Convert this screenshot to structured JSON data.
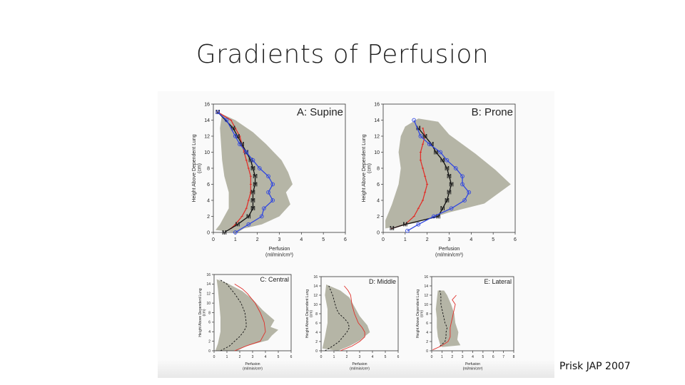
{
  "slide": {
    "title": "Gradients of Perfusion",
    "citation": "Prisk JAP 2007"
  },
  "colors": {
    "band": "#b5b5a6",
    "red": "#e0302a",
    "blue": "#2f46e0",
    "black": "#111111"
  },
  "chart_data": [
    {
      "type": "line",
      "title": "A: Supine",
      "xlabel": "Perfusion",
      "xunit": "(ml/min/cm³)",
      "ylabel": "Height Above Dependent Lung",
      "yunit": "(cm)",
      "xlim": [
        0,
        6
      ],
      "ylim": [
        0,
        16
      ],
      "xticks": [
        0,
        1,
        2,
        3,
        4,
        5,
        6
      ],
      "yticks": [
        0,
        2,
        4,
        6,
        8,
        10,
        12,
        14,
        16
      ],
      "band": [
        [
          1.1,
          0
        ],
        [
          1.4,
          0.5
        ],
        [
          2.2,
          1
        ],
        [
          3.0,
          2
        ],
        [
          3.5,
          3.5
        ],
        [
          3.3,
          5
        ],
        [
          3.6,
          6
        ],
        [
          3.4,
          7.5
        ],
        [
          3.1,
          9
        ],
        [
          2.4,
          11
        ],
        [
          1.8,
          12.5
        ],
        [
          1.0,
          14
        ],
        [
          0.2,
          15
        ],
        [
          0.4,
          14.8
        ],
        [
          0.3,
          13
        ],
        [
          0.35,
          11
        ],
        [
          0.4,
          9
        ],
        [
          0.5,
          7
        ],
        [
          0.7,
          5
        ],
        [
          0.7,
          3
        ],
        [
          0.5,
          2
        ],
        [
          0.3,
          1
        ],
        [
          0.1,
          0.3
        ]
      ],
      "series": [
        {
          "color": "#e0302a",
          "marker": "tick",
          "x": [
            0.8,
            1.0,
            1.3,
            1.5,
            1.6,
            1.7,
            1.7,
            1.7,
            1.6,
            1.5,
            1.4,
            1.3,
            1.2,
            1.0,
            0.8,
            0.2
          ],
          "y": [
            0.5,
            1,
            2,
            3,
            4,
            5,
            6,
            7,
            8,
            9,
            10,
            11,
            12,
            13,
            14,
            15
          ]
        },
        {
          "color": "#111111",
          "marker": "M",
          "x": [
            0.5,
            1.1,
            1.6,
            1.8,
            1.8,
            1.8,
            1.9,
            1.9,
            1.8,
            1.7,
            1.5,
            1.3,
            1.1,
            0.9,
            0.2
          ],
          "y": [
            0,
            1,
            2,
            3,
            4,
            5,
            6,
            7,
            8,
            9,
            10,
            11,
            12,
            13,
            15
          ]
        },
        {
          "color": "#2f46e0",
          "marker": "circle",
          "x": [
            1.0,
            1.6,
            2.2,
            2.3,
            2.7,
            2.5,
            2.7,
            2.5,
            2.1,
            1.8,
            1.5,
            1.2,
            1.0,
            0.6,
            0.2
          ],
          "y": [
            0,
            1,
            2,
            3,
            4,
            5,
            6,
            7,
            8,
            9,
            10,
            11,
            12,
            14,
            15
          ]
        }
      ]
    },
    {
      "type": "line",
      "title": "B: Prone",
      "xlabel": "Perfusion",
      "xunit": "(ml/min/cm³)",
      "ylabel": "Height Above Dependent Lung",
      "yunit": "(cm)",
      "xlim": [
        0,
        6
      ],
      "ylim": [
        0,
        16
      ],
      "xticks": [
        0,
        1,
        2,
        3,
        4,
        5,
        6
      ],
      "yticks": [
        0,
        2,
        4,
        6,
        8,
        10,
        12,
        14,
        16
      ],
      "band": [
        [
          0.1,
          0.5
        ],
        [
          1.5,
          1.2
        ],
        [
          3.0,
          2.5
        ],
        [
          4.6,
          3.6
        ],
        [
          5.8,
          6
        ],
        [
          5.1,
          7.8
        ],
        [
          4.2,
          9.8
        ],
        [
          3.0,
          12.2
        ],
        [
          2.5,
          13.8
        ],
        [
          1.6,
          14.2
        ],
        [
          1.0,
          13.2
        ],
        [
          0.8,
          12
        ],
        [
          0.7,
          10
        ],
        [
          0.8,
          8
        ],
        [
          0.7,
          6
        ],
        [
          0.4,
          3.5
        ],
        [
          0.1,
          1.5
        ]
      ],
      "series": [
        {
          "color": "#e0302a",
          "marker": "tick",
          "x": [
            0.4,
            1.0,
            1.4,
            1.6,
            1.8,
            1.9,
            2.0,
            1.9,
            1.8,
            1.7,
            1.7,
            1.8,
            1.9,
            1.8
          ],
          "y": [
            0.5,
            1,
            2,
            3,
            4,
            5,
            6,
            7,
            8,
            9,
            10,
            11,
            12,
            13
          ]
        },
        {
          "color": "#111111",
          "marker": "M",
          "x": [
            0.4,
            1.0,
            2.5,
            2.7,
            2.9,
            3.0,
            3.1,
            3.0,
            2.9,
            2.7,
            2.4,
            2.2,
            1.9,
            1.6
          ],
          "y": [
            0.5,
            1,
            2,
            3,
            4,
            5,
            6,
            7,
            8,
            9,
            10,
            11,
            12,
            13
          ]
        },
        {
          "color": "#2f46e0",
          "marker": "circle",
          "x": [
            1.1,
            1.6,
            2.3,
            3.1,
            3.7,
            3.9,
            3.6,
            3.6,
            3.3,
            2.9,
            2.6,
            2.1,
            1.7,
            1.4
          ],
          "y": [
            0.2,
            1,
            2,
            3,
            4,
            5,
            6,
            7,
            8,
            9,
            10,
            11,
            12,
            14
          ]
        }
      ]
    },
    {
      "type": "line",
      "title": "C: Central",
      "xlabel": "Perfusion",
      "xunit": "(ml/min/cm³)",
      "ylabel": "Height Above Dependent Lung",
      "yunit": "(cm)",
      "xlim": [
        0,
        6
      ],
      "ylim": [
        0,
        16
      ],
      "xticks": [
        0,
        1,
        2,
        3,
        4,
        5,
        6
      ],
      "yticks": [
        0,
        2,
        4,
        6,
        8,
        10,
        12,
        14,
        16
      ],
      "band": [
        [
          1.8,
          0
        ],
        [
          2.5,
          1
        ],
        [
          4.2,
          2.2
        ],
        [
          4.5,
          3.2
        ],
        [
          5.0,
          4.4
        ],
        [
          4.4,
          5
        ],
        [
          4.7,
          6.4
        ],
        [
          3.8,
          8.5
        ],
        [
          3.0,
          10.8
        ],
        [
          2.2,
          12.5
        ],
        [
          1.0,
          14.2
        ],
        [
          0.2,
          15
        ],
        [
          0.3,
          13
        ],
        [
          0.4,
          10
        ],
        [
          0.5,
          7
        ],
        [
          0.5,
          4
        ],
        [
          0.3,
          1.5
        ],
        [
          0.1,
          0
        ]
      ],
      "series": [
        {
          "color": "#111111",
          "dash": true,
          "x": [
            0.5,
            1.2,
            1.6,
            2.0,
            2.3,
            2.5,
            2.5,
            2.4,
            2.1,
            1.6,
            1.0,
            0.4
          ],
          "y": [
            0,
            1,
            2,
            3,
            4,
            5,
            6,
            8,
            10,
            12,
            14,
            15
          ]
        },
        {
          "color": "#e0302a",
          "dash": false,
          "x": [
            1.6,
            2.5,
            3.6,
            4.0,
            3.9,
            3.6,
            3.2,
            2.6,
            2.2,
            1.6
          ],
          "y": [
            0,
            1,
            2,
            4,
            6,
            8,
            10,
            12,
            13,
            14
          ]
        }
      ]
    },
    {
      "type": "line",
      "title": "D: Middle",
      "xlabel": "Perfusion",
      "xunit": "(ml/min/cm³)",
      "ylabel": "Height Above Dependent Lung",
      "yunit": "(cm)",
      "xlim": [
        0,
        6
      ],
      "ylim": [
        0,
        16
      ],
      "xticks": [
        0,
        1,
        2,
        3,
        4,
        5,
        6
      ],
      "yticks": [
        0,
        2,
        4,
        6,
        8,
        10,
        12,
        14,
        16
      ],
      "band": [
        [
          1.3,
          0
        ],
        [
          2.2,
          1
        ],
        [
          3.0,
          2.2
        ],
        [
          3.8,
          4
        ],
        [
          3.6,
          5.5
        ],
        [
          3.0,
          7.5
        ],
        [
          2.6,
          9.5
        ],
        [
          2.2,
          11.5
        ],
        [
          1.5,
          13
        ],
        [
          0.4,
          14.3
        ],
        [
          0.3,
          12
        ],
        [
          0.5,
          9
        ],
        [
          0.5,
          6
        ],
        [
          0.3,
          3
        ],
        [
          0.1,
          0.5
        ]
      ],
      "series": [
        {
          "color": "#111111",
          "dash": true,
          "x": [
            0.3,
            0.9,
            1.4,
            1.7,
            2.0,
            2.2,
            2.1,
            1.8,
            1.4,
            1.2,
            1.1,
            0.9,
            0.6
          ],
          "y": [
            0,
            1,
            2,
            3,
            4,
            5,
            6,
            7,
            8,
            9,
            10,
            12,
            14
          ]
        },
        {
          "color": "#e0302a",
          "dash": false,
          "x": [
            1.5,
            2.4,
            3.0,
            3.4,
            3.4,
            3.2,
            2.9,
            2.6,
            2.4,
            2.3,
            2.1,
            1.8
          ],
          "y": [
            0,
            1,
            2,
            3,
            4,
            5,
            6,
            8,
            10,
            12,
            13,
            14
          ]
        }
      ]
    },
    {
      "type": "line",
      "title": "E: Lateral",
      "xlabel": "Perfusion",
      "xunit": "(ml/min/cm³)",
      "ylabel": "Height Above Dependent Lung",
      "yunit": "(cm)",
      "xlim": [
        0,
        8
      ],
      "ylim": [
        0,
        16
      ],
      "xticks": [
        0,
        1,
        2,
        3,
        4,
        5,
        6,
        7,
        8
      ],
      "yticks": [
        0,
        2,
        4,
        6,
        8,
        10,
        12,
        14,
        16
      ],
      "band": [
        [
          1.0,
          0.8
        ],
        [
          2.8,
          1.2
        ],
        [
          2.5,
          2.4
        ],
        [
          2.6,
          4
        ],
        [
          2.3,
          6
        ],
        [
          2.2,
          8
        ],
        [
          1.9,
          10
        ],
        [
          1.5,
          12
        ],
        [
          1.2,
          13
        ],
        [
          0.6,
          13
        ],
        [
          0.5,
          11
        ],
        [
          0.4,
          9
        ],
        [
          0.5,
          7
        ],
        [
          0.5,
          5
        ],
        [
          0.6,
          3
        ],
        [
          0.8,
          1.5
        ]
      ],
      "series": [
        {
          "color": "#111111",
          "dash": true,
          "x": [
            0.8,
            1.3,
            1.4,
            1.4,
            1.5,
            1.3,
            1.2,
            1.1,
            1.0,
            0.9,
            0.9,
            0.8
          ],
          "y": [
            1,
            2,
            3,
            4,
            5,
            6,
            7,
            8,
            9,
            10,
            12,
            13
          ]
        },
        {
          "color": "#e0302a",
          "dash": false,
          "x": [
            0.1,
            0.9,
            1.6,
            1.8,
            1.8,
            1.8,
            1.9,
            2.0,
            2.1,
            2.2,
            2.3,
            2.0,
            2.4
          ],
          "y": [
            0.2,
            1,
            2,
            3,
            4,
            5,
            6,
            7,
            8,
            9,
            10,
            11,
            12
          ]
        }
      ]
    }
  ]
}
